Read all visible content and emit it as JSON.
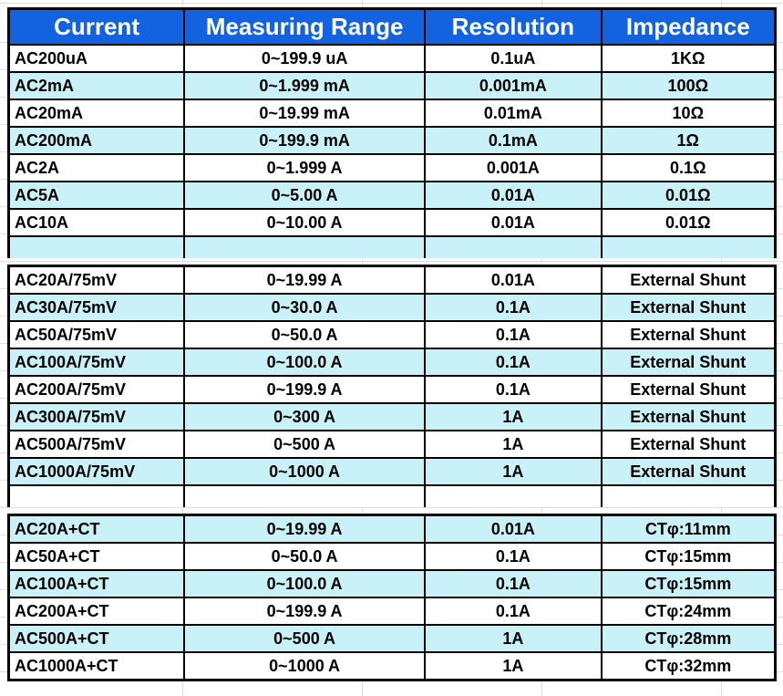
{
  "title": "AC current measuring range specification table",
  "colors": {
    "header_bg": "#1362df",
    "header_text": "#ffffff",
    "alt_row_bg": "#c9f2f8",
    "row_bg": "#ffffff",
    "border": "#000000"
  },
  "chart_data": {
    "type": "table",
    "columns": [
      "Current",
      "Measuring Range",
      "Resolution",
      "Impedance"
    ],
    "sections": [
      {
        "blank_after": true,
        "rows": [
          [
            "AC200uA",
            "0~199.9 uA",
            "0.1uA",
            "1KΩ"
          ],
          [
            "AC2mA",
            "0~1.999 mA",
            "0.001mA",
            "100Ω"
          ],
          [
            "AC20mA",
            "0~19.99 mA",
            "0.01mA",
            "10Ω"
          ],
          [
            "AC200mA",
            "0~199.9 mA",
            "0.1mA",
            "1Ω"
          ],
          [
            "AC2A",
            "0~1.999 A",
            "0.001A",
            "0.1Ω"
          ],
          [
            "AC5A",
            "0~5.00 A",
            "0.01A",
            "0.01Ω"
          ],
          [
            "AC10A",
            "0~10.00 A",
            "0.01A",
            "0.01Ω"
          ]
        ]
      },
      {
        "blank_after": true,
        "rows": [
          [
            "AC20A/75mV",
            "0~19.99 A",
            "0.01A",
            "External Shunt"
          ],
          [
            "AC30A/75mV",
            "0~30.0 A",
            "0.1A",
            "External Shunt"
          ],
          [
            "AC50A/75mV",
            "0~50.0 A",
            "0.1A",
            "External Shunt"
          ],
          [
            "AC100A/75mV",
            "0~100.0 A",
            "0.1A",
            "External Shunt"
          ],
          [
            "AC200A/75mV",
            "0~199.9 A",
            "0.1A",
            "External Shunt"
          ],
          [
            "AC300A/75mV",
            "0~300 A",
            "1A",
            "External Shunt"
          ],
          [
            "AC500A/75mV",
            "0~500 A",
            "1A",
            "External Shunt"
          ],
          [
            "AC1000A/75mV",
            "0~1000 A",
            "1A",
            "External Shunt"
          ]
        ]
      },
      {
        "blank_after": false,
        "rows": [
          [
            "AC20A+CT",
            "0~19.99 A",
            "0.01A",
            "CTφ:11mm"
          ],
          [
            "AC50A+CT",
            "0~50.0 A",
            "0.1A",
            "CTφ:15mm"
          ],
          [
            "AC100A+CT",
            "0~100.0 A",
            "0.1A",
            "CTφ:15mm"
          ],
          [
            "AC200A+CT",
            "0~199.9 A",
            "0.1A",
            "CTφ:24mm"
          ],
          [
            "AC500A+CT",
            "0~500 A",
            "1A",
            "CTφ:28mm"
          ],
          [
            "AC1000A+CT",
            "0~1000 A",
            "1A",
            "CTφ:32mm"
          ]
        ]
      }
    ]
  }
}
